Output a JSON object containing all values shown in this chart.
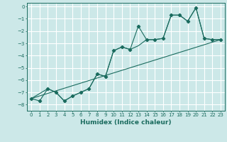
{
  "xlabel": "Humidex (Indice chaleur)",
  "bg_color": "#cce8e8",
  "grid_color": "#ffffff",
  "line_color": "#1a6b5e",
  "xlim": [
    -0.5,
    23.5
  ],
  "ylim": [
    -8.5,
    0.3
  ],
  "xticks": [
    0,
    1,
    2,
    3,
    4,
    5,
    6,
    7,
    8,
    9,
    10,
    11,
    12,
    13,
    14,
    15,
    16,
    17,
    18,
    19,
    20,
    21,
    22,
    23
  ],
  "yticks": [
    0,
    -1,
    -2,
    -3,
    -4,
    -5,
    -6,
    -7,
    -8
  ],
  "line1_x": [
    0,
    1,
    2,
    3,
    4,
    5,
    6,
    7,
    8,
    9,
    10,
    11,
    12,
    13,
    14,
    15,
    16,
    17,
    18,
    19,
    20,
    21,
    22,
    23
  ],
  "line1_y": [
    -7.5,
    -7.7,
    -6.7,
    -7.0,
    -7.7,
    -7.3,
    -7.0,
    -6.7,
    -5.5,
    -5.7,
    -3.6,
    -3.3,
    -3.5,
    -1.6,
    -2.7,
    -2.7,
    -2.6,
    -0.7,
    -0.7,
    -1.2,
    -0.1,
    -2.6,
    -2.7,
    -2.7
  ],
  "line2_x": [
    0,
    2,
    3,
    4,
    5,
    6,
    7,
    8,
    9,
    10,
    11,
    12,
    13,
    14,
    15,
    16,
    17,
    18,
    19,
    20,
    21,
    22,
    23
  ],
  "line2_y": [
    -7.5,
    -6.7,
    -7.0,
    -7.7,
    -7.3,
    -7.0,
    -6.7,
    -5.5,
    -5.7,
    -3.6,
    -3.3,
    -3.5,
    -3.2,
    -2.7,
    -2.7,
    -2.6,
    -0.7,
    -0.7,
    -1.2,
    -0.1,
    -2.6,
    -2.7,
    -2.7
  ],
  "line3_x": [
    0,
    23
  ],
  "line3_y": [
    -7.5,
    -2.7
  ]
}
